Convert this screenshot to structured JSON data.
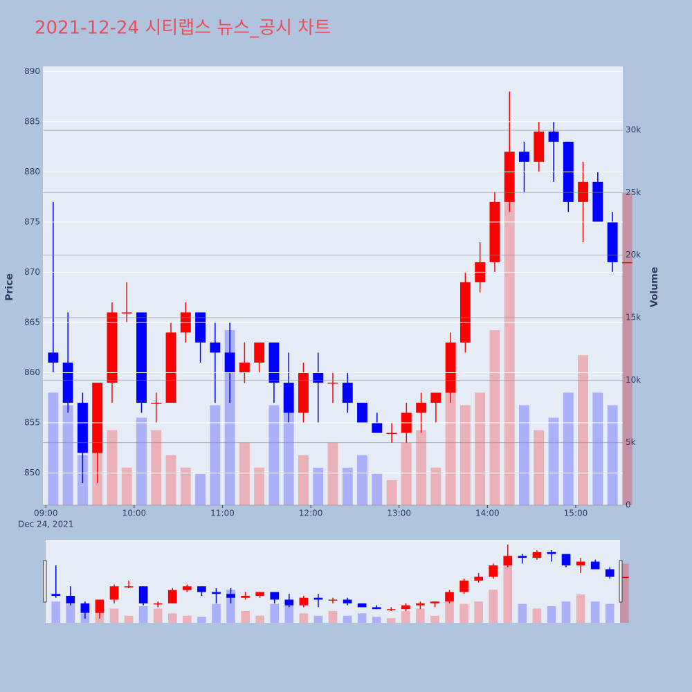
{
  "chart_data": {
    "type": "candlestick",
    "title": "2021-12-24 시티랩스 뉴스_공시 차트",
    "yaxis_title": "Price",
    "y2axis_title": "Volume",
    "increasing_color": "#ff0000",
    "decreasing_color": "#0000ff",
    "x": [
      "2021-12-24 09:00",
      "2021-12-24 09:10",
      "2021-12-24 09:20",
      "2021-12-24 09:30",
      "2021-12-24 09:40",
      "2021-12-24 09:50",
      "2021-12-24 10:00",
      "2021-12-24 10:10",
      "2021-12-24 10:20",
      "2021-12-24 10:30",
      "2021-12-24 10:40",
      "2021-12-24 10:50",
      "2021-12-24 11:00",
      "2021-12-24 11:10",
      "2021-12-24 11:20",
      "2021-12-24 11:30",
      "2021-12-24 11:40",
      "2021-12-24 11:50",
      "2021-12-24 12:00",
      "2021-12-24 12:10",
      "2021-12-24 12:20",
      "2021-12-24 12:30",
      "2021-12-24 12:40",
      "2021-12-24 12:50",
      "2021-12-24 13:00",
      "2021-12-24 13:10",
      "2021-12-24 13:20",
      "2021-12-24 13:30",
      "2021-12-24 13:40",
      "2021-12-24 13:50",
      "2021-12-24 14:00",
      "2021-12-24 14:10",
      "2021-12-24 14:20",
      "2021-12-24 14:30",
      "2021-12-24 14:40",
      "2021-12-24 14:50",
      "2021-12-24 15:00",
      "2021-12-24 15:10",
      "2021-12-24 15:20",
      "2021-12-24 15:30"
    ],
    "open": [
      862,
      861,
      857,
      852,
      859,
      866,
      866,
      857,
      857,
      864,
      866,
      863,
      862,
      860,
      861,
      863,
      859,
      856,
      860,
      859,
      859,
      857,
      855,
      854,
      854,
      856,
      857,
      858,
      863,
      869,
      871,
      877,
      882,
      881,
      884,
      883,
      877,
      879,
      875,
      871
    ],
    "high": [
      877,
      866,
      858,
      859,
      867,
      869,
      866,
      858,
      865,
      867,
      866,
      865,
      865,
      863,
      863,
      863,
      862,
      861,
      862,
      860,
      860,
      857,
      856,
      855,
      857,
      858,
      858,
      864,
      870,
      873,
      878,
      888,
      883,
      885,
      885,
      883,
      881,
      880,
      876,
      871
    ],
    "low": [
      860,
      856,
      849,
      849,
      857,
      865,
      856,
      855,
      857,
      863,
      861,
      857,
      857,
      859,
      860,
      857,
      855,
      855,
      855,
      857,
      856,
      855,
      854,
      853,
      853,
      854,
      855,
      857,
      862,
      868,
      870,
      876,
      878,
      880,
      879,
      876,
      873,
      875,
      870,
      871
    ],
    "close": [
      861,
      857,
      852,
      859,
      866,
      866,
      857,
      857,
      864,
      866,
      863,
      862,
      860,
      861,
      863,
      859,
      856,
      860,
      859,
      859,
      857,
      855,
      854,
      854,
      856,
      857,
      858,
      863,
      869,
      871,
      877,
      882,
      881,
      884,
      883,
      877,
      879,
      875,
      871,
      871
    ],
    "volume": [
      9000,
      8000,
      4000,
      8000,
      6000,
      3000,
      7000,
      6000,
      4000,
      3000,
      2500,
      8000,
      14000,
      5000,
      3000,
      8000,
      9000,
      4000,
      3000,
      5000,
      3000,
      4000,
      2500,
      2000,
      5000,
      6000,
      3000,
      12000,
      8000,
      9000,
      14000,
      26000,
      8000,
      6000,
      7000,
      9000,
      12000,
      9000,
      8000,
      25000
    ],
    "xlim": [
      "2021-12-24 08:58",
      "2021-12-24 15:32"
    ],
    "xticks": [
      {
        "value": "2021-12-24 09:00",
        "label": "09:00"
      },
      {
        "value": "2021-12-24 10:00",
        "label": "10:00"
      },
      {
        "value": "2021-12-24 11:00",
        "label": "11:00"
      },
      {
        "value": "2021-12-24 12:00",
        "label": "12:00"
      },
      {
        "value": "2021-12-24 13:00",
        "label": "13:00"
      },
      {
        "value": "2021-12-24 14:00",
        "label": "14:00"
      },
      {
        "value": "2021-12-24 15:00",
        "label": "15:00"
      }
    ],
    "xtick_sublabel": "Dec 24, 2021",
    "ylim": [
      846.8,
      890.5
    ],
    "yticks": [
      850,
      855,
      860,
      865,
      870,
      875,
      880,
      885,
      890
    ],
    "y2lim": [
      0,
      35100
    ],
    "y2ticks": [
      0,
      {
        "value": 5000,
        "label": "5k"
      },
      {
        "value": 10000,
        "label": "10k"
      },
      {
        "value": 15000,
        "label": "15k"
      },
      {
        "value": 20000,
        "label": "20k"
      },
      {
        "value": 25000,
        "label": "25k"
      },
      {
        "value": 30000,
        "label": "30k"
      }
    ],
    "grid": true,
    "rangeslider": true
  }
}
